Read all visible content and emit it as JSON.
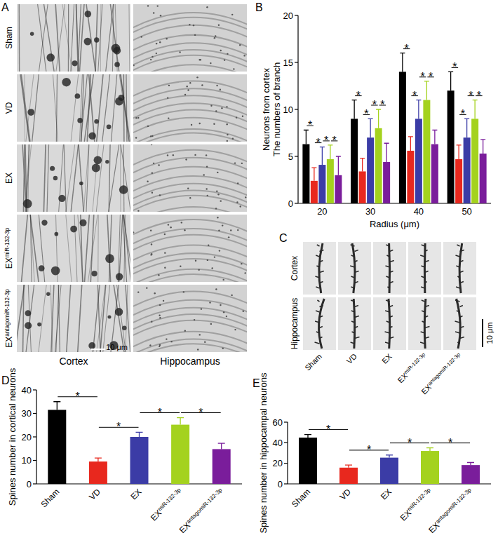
{
  "figure": {
    "panel_labels": [
      "A",
      "B",
      "C",
      "D",
      "E"
    ],
    "panel_a": {
      "rows": [
        "Sham",
        "VD",
        "EX",
        "EXmiR-132-3p",
        "EXantagomiR-132-3p"
      ],
      "columns": [
        "Cortex",
        "Hippocampus"
      ],
      "scale_bar": "10 μm"
    },
    "panel_c": {
      "rows": [
        "Cortex",
        "Hippocampus"
      ],
      "columns": [
        "Sham",
        "VD",
        "EX",
        "EXmiR-132-3p",
        "EXantagomiR-132-3p"
      ],
      "scale_bar": "10 μm"
    }
  },
  "chart_data": [
    {
      "type": "bar",
      "y_label": "Neurons from cortex\nThe numbers of branch",
      "x_label": "Radius (μm)",
      "categories": [
        "20",
        "30",
        "40",
        "50"
      ],
      "series": [
        {
          "color": "#000000",
          "values": [
            6.3,
            9.0,
            14.0,
            12.0
          ],
          "errors": [
            1.5,
            2.0,
            2.0,
            2.0
          ]
        },
        {
          "color": "#e8281e",
          "values": [
            2.4,
            3.4,
            5.6,
            4.7
          ],
          "errors": [
            1.4,
            1.4,
            1.5,
            1.5
          ]
        },
        {
          "color": "#3b3ca6",
          "values": [
            4.1,
            7.0,
            9.0,
            7.0
          ],
          "errors": [
            1.9,
            2.0,
            2.0,
            2.0
          ]
        },
        {
          "color": "#a4d21e",
          "values": [
            4.7,
            8.0,
            11.0,
            9.0
          ],
          "errors": [
            1.5,
            2.0,
            2.0,
            2.0
          ]
        },
        {
          "color": "#7a1d9b",
          "values": [
            3.0,
            4.4,
            6.3,
            5.3
          ],
          "errors": [
            2.0,
            2.0,
            1.5,
            1.5
          ]
        }
      ],
      "ylim": [
        0,
        20
      ],
      "yticks": [
        0,
        5,
        10,
        15,
        20
      ],
      "significance": [
        {
          "pair": [
            0,
            1
          ],
          "label": "*"
        },
        {
          "pair": [
            1,
            2
          ],
          "label": "*"
        },
        {
          "pair": [
            2,
            3
          ],
          "label": "*"
        },
        {
          "pair": [
            3,
            4
          ],
          "label": "*"
        }
      ]
    },
    {
      "type": "bar",
      "y_label": "Spines number in cortical neurons",
      "categories": [
        "Sham",
        "VD",
        "EX",
        "EXmiR-132-3p",
        "EXantagomiR-132-3p"
      ],
      "values": [
        31.5,
        9.5,
        20.0,
        25.2,
        14.8
      ],
      "errors": [
        3.5,
        1.5,
        2.0,
        3.0,
        2.5
      ],
      "colors": [
        "#000000",
        "#e8281e",
        "#3b3ca6",
        "#a4d21e",
        "#7a1d9b"
      ],
      "ylim": [
        0,
        40
      ],
      "yticks": [
        0,
        10,
        20,
        30,
        40
      ],
      "significance": [
        {
          "pair": [
            0,
            1
          ],
          "label": "*"
        },
        {
          "pair": [
            1,
            2
          ],
          "label": "*"
        },
        {
          "pair": [
            2,
            3
          ],
          "label": "*"
        },
        {
          "pair": [
            3,
            4
          ],
          "label": "*"
        }
      ]
    },
    {
      "type": "bar",
      "y_label": "Spines number in hippocampal neurons",
      "categories": [
        "Sham",
        "VD",
        "EX",
        "EXmiR-132-3p",
        "EXantagomiR-132-3p"
      ],
      "values": [
        45.0,
        15.8,
        25.5,
        32.0,
        18.3
      ],
      "errors": [
        3.0,
        2.5,
        2.5,
        3.0,
        2.5
      ],
      "colors": [
        "#000000",
        "#e8281e",
        "#3b3ca6",
        "#a4d21e",
        "#7a1d9b"
      ],
      "ylim": [
        0,
        60
      ],
      "yticks": [
        0,
        20,
        40,
        60
      ],
      "significance": [
        {
          "pair": [
            0,
            1
          ],
          "label": "*"
        },
        {
          "pair": [
            1,
            2
          ],
          "label": "*"
        },
        {
          "pair": [
            2,
            3
          ],
          "label": "*"
        },
        {
          "pair": [
            3,
            4
          ],
          "label": "*"
        }
      ]
    }
  ]
}
